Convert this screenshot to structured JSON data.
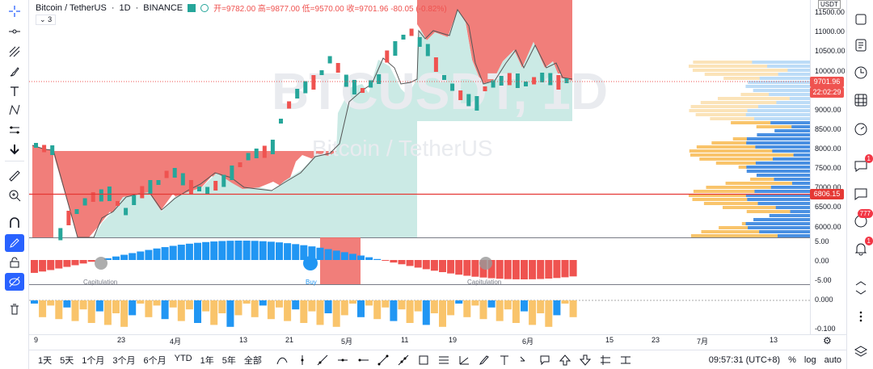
{
  "legend": {
    "symbol": "Bitcoin / TetherUS",
    "interval": "1D",
    "exchange": "BINANCE",
    "ohlc": "开=9782.00 高=9877.00 低=9570.00 收=9701.96 -80.05 (-0.82%)",
    "collapsed_count": "3"
  },
  "watermark": {
    "line1": "BTCUSDT, 1D",
    "line2": "Bitcoin / TetherUS"
  },
  "price_axis": {
    "currency": "USDT",
    "ticks": [
      "11500.00",
      "11000.00",
      "10500.00",
      "10000.00",
      "9500.00",
      "9000.00",
      "8500.00",
      "8000.00",
      "7500.00",
      "7000.00",
      "6500.00",
      "6000.00"
    ],
    "last_price": "9701.96",
    "countdown": "22:02:29",
    "level_price": "6806.15",
    "osc_ticks": [
      "5.00",
      "0.00",
      "-5.00"
    ],
    "vol_ticks": [
      "0.000",
      "-0.100"
    ]
  },
  "annotations": {
    "cap1": "Capitulation",
    "buy": "Buy",
    "cap2": "Capitulation"
  },
  "time_axis": [
    "9",
    "23",
    "4月",
    "13",
    "21",
    "5月",
    "11",
    "19",
    "6月",
    "15",
    "23",
    "7月",
    "13"
  ],
  "bottom": {
    "timeframes": [
      "1天",
      "5天",
      "1个月",
      "3个月",
      "6个月",
      "YTD",
      "1年",
      "5年",
      "全部"
    ],
    "clock": "09:57:31 (UTC+8)",
    "pct": "%",
    "log": "log",
    "auto": "auto"
  },
  "right_toolbar": {
    "badge1": "1",
    "badge2": "777",
    "badge3": "1"
  },
  "colors": {
    "up": "#26a69a",
    "down": "#ef5350",
    "blue": "#2196f3",
    "red_zone": "#f0706c",
    "teal_zone": "#cbeae5"
  },
  "icons": {
    "left": [
      "crosshair-icon",
      "trend-line-icon",
      "fib-icon",
      "brush-icon",
      "text-icon",
      "pattern-icon",
      "forecast-icon",
      "arrow-down-icon",
      "ruler-icon",
      "zoom-in-icon",
      "magnet-icon",
      "pencil-lock-icon",
      "lock-icon",
      "eye-off-icon",
      "trash-icon"
    ],
    "right": [
      "watchlist-icon",
      "news-icon",
      "clock-icon",
      "calendar-grid-icon",
      "gauge-icon",
      "chat-icon",
      "chat-bubble-icon",
      "ideas-icon",
      "alerts-icon",
      "chevrons-icon",
      "dots-icon",
      "layers-icon"
    ]
  }
}
